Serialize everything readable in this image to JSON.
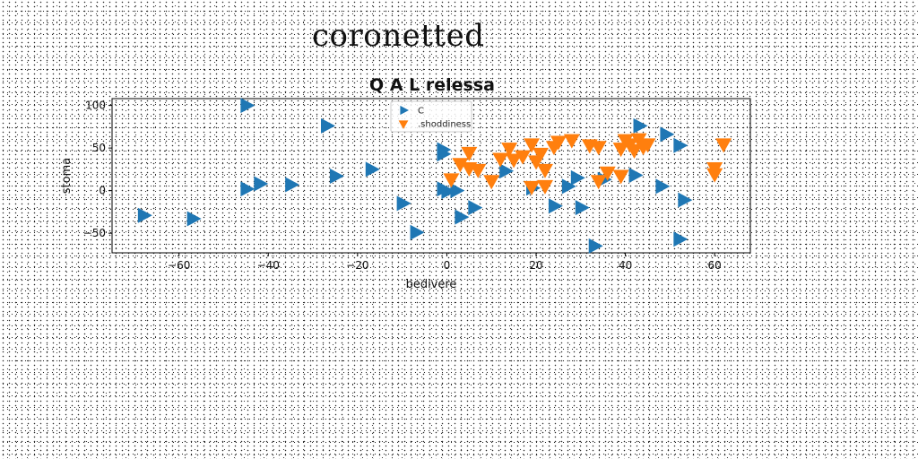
{
  "page": {
    "title": "coronetted"
  },
  "chart_data": {
    "type": "scatter",
    "title": "Q A L relessa",
    "xlabel": "bedivere",
    "ylabel": "stoma",
    "xlim": [
      -75,
      68
    ],
    "ylim": [
      -73,
      108
    ],
    "xticks": [
      -60,
      -40,
      -20,
      0,
      20,
      40,
      60
    ],
    "yticks": [
      -50,
      0,
      50,
      100
    ],
    "grid": false,
    "legend_position": "top-center",
    "series": [
      {
        "name": "C",
        "marker": "triangle-right",
        "color": "#1f77b4",
        "points": [
          [
            -45,
            100
          ],
          [
            -27,
            76
          ],
          [
            -68,
            -29
          ],
          [
            -57,
            -33
          ],
          [
            -45,
            2
          ],
          [
            -42,
            8
          ],
          [
            -35,
            7
          ],
          [
            -25,
            17
          ],
          [
            -17,
            25
          ],
          [
            -10,
            -15
          ],
          [
            -7,
            -49
          ],
          [
            -1,
            48
          ],
          [
            -1,
            43
          ],
          [
            -1,
            2
          ],
          [
            0,
            -1
          ],
          [
            2,
            0
          ],
          [
            3,
            -31
          ],
          [
            6,
            -20
          ],
          [
            13,
            23
          ],
          [
            19,
            3
          ],
          [
            24,
            -18
          ],
          [
            27,
            5
          ],
          [
            29,
            15
          ],
          [
            30,
            -20
          ],
          [
            33,
            -65
          ],
          [
            35,
            13
          ],
          [
            42,
            18
          ],
          [
            43,
            76
          ],
          [
            49,
            66
          ],
          [
            52,
            53
          ],
          [
            48,
            5
          ],
          [
            53,
            -11
          ],
          [
            52,
            -57
          ]
        ]
      },
      {
        "name": ".shoddiness",
        "marker": "triangle-down",
        "color": "#ff7f0e",
        "points": [
          [
            1,
            14
          ],
          [
            3,
            32
          ],
          [
            5,
            45
          ],
          [
            5,
            27
          ],
          [
            7,
            25
          ],
          [
            10,
            12
          ],
          [
            12,
            38
          ],
          [
            14,
            50
          ],
          [
            15,
            37
          ],
          [
            17,
            41
          ],
          [
            19,
            55
          ],
          [
            19,
            5
          ],
          [
            20,
            35
          ],
          [
            21,
            44
          ],
          [
            22,
            6
          ],
          [
            22,
            25
          ],
          [
            24,
            52
          ],
          [
            25,
            58
          ],
          [
            28,
            60
          ],
          [
            32,
            54
          ],
          [
            34,
            52
          ],
          [
            34,
            12
          ],
          [
            36,
            22
          ],
          [
            39,
            18
          ],
          [
            39,
            50
          ],
          [
            40,
            60
          ],
          [
            41,
            55
          ],
          [
            42,
            48
          ],
          [
            43,
            61
          ],
          [
            44,
            52
          ],
          [
            45,
            55
          ],
          [
            60,
            27
          ],
          [
            60,
            20
          ],
          [
            62,
            55
          ]
        ]
      }
    ]
  }
}
